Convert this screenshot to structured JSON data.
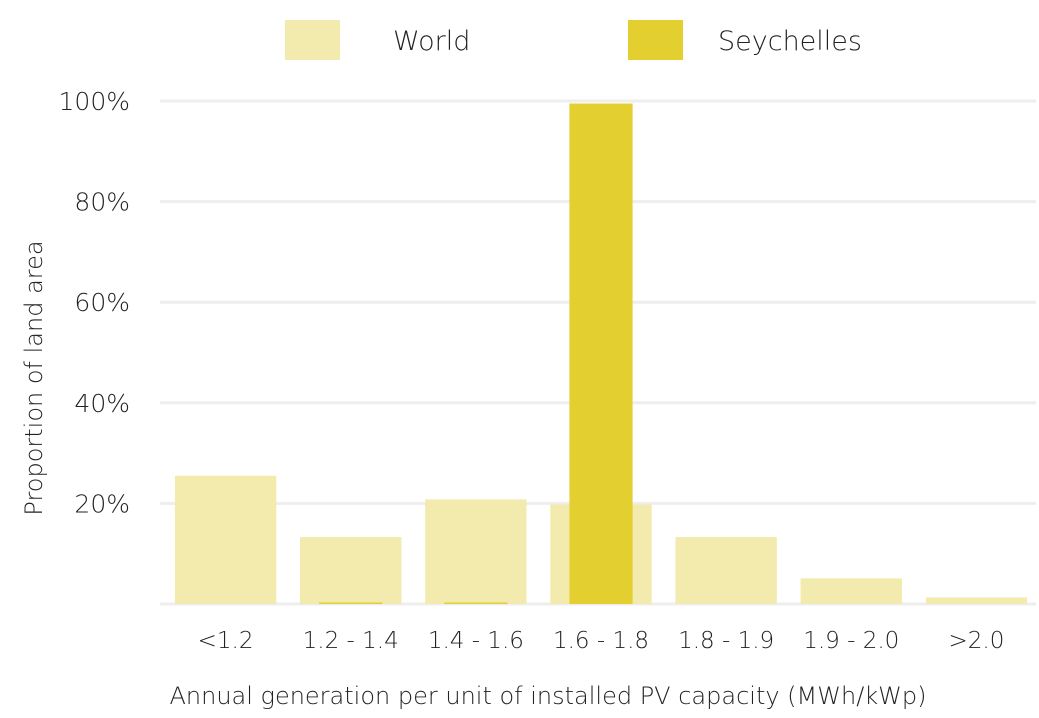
{
  "chart_data": {
    "type": "bar",
    "title": "",
    "xlabel": "Annual generation per unit of installed PV capacity (MWh/kWp)",
    "ylabel": "Proportion of land area",
    "categories": [
      "<1.2",
      "1.2 - 1.4",
      "1.4 - 1.6",
      "1.6 - 1.8",
      "1.8 - 1.9",
      "1.9 - 2.0",
      ">2.0"
    ],
    "ylim": [
      0,
      100
    ],
    "yticks": [
      {
        "value": 20,
        "label": "20%"
      },
      {
        "value": 40,
        "label": "40%"
      },
      {
        "value": 60,
        "label": "60%"
      },
      {
        "value": 80,
        "label": "80%"
      },
      {
        "value": 100,
        "label": "100%"
      }
    ],
    "grid": true,
    "legend_position": "top",
    "series": [
      {
        "name": "World",
        "color": "#f3eaad",
        "values": [
          25.5,
          13.3,
          20.8,
          19.8,
          13.3,
          5.1,
          1.3
        ]
      },
      {
        "name": "Seychelles",
        "color": "#e3cf30",
        "values": [
          0,
          0.3,
          0.3,
          99.5,
          0,
          0,
          0
        ]
      }
    ]
  }
}
